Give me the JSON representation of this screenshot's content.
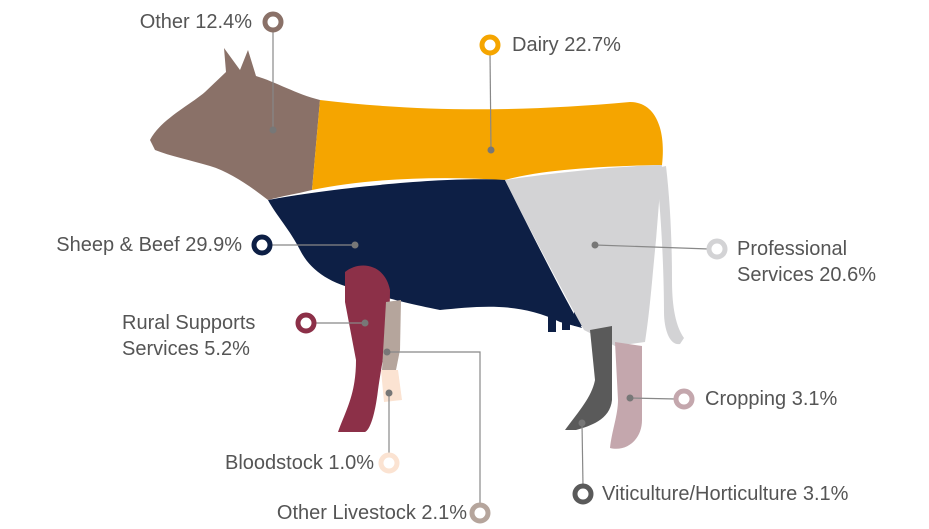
{
  "chart_data": {
    "type": "pictorial",
    "categories": [
      "Other",
      "Dairy",
      "Sheep & Beef",
      "Professional Services",
      "Rural Supports Services",
      "Cropping",
      "Bloodstock",
      "Viticulture/Horticulture",
      "Other Livestock"
    ],
    "values": [
      12.4,
      22.7,
      29.9,
      20.6,
      5.2,
      3.1,
      1.0,
      3.1,
      2.1
    ],
    "value_labels": [
      "12.4%",
      "22.7%",
      "29.9%",
      "20.6%",
      "5.2%",
      "3.1%",
      "1.0%",
      "3.1%",
      "2.1%"
    ],
    "colors": [
      "#8a7168",
      "#f5a500",
      "#0d1f45",
      "#d3d3d5",
      "#8c3048",
      "#c4a7ad",
      "#fbe3d2",
      "#5a5a5a",
      "#b5a59c"
    ]
  }
}
